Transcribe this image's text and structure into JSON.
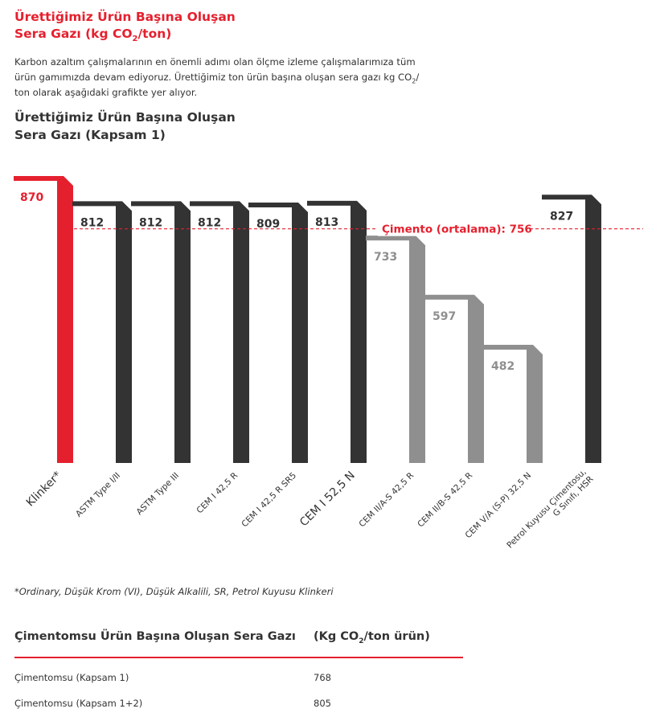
{
  "header": {
    "title_line1": "Ürettiğimiz Ürün Başına Oluşan",
    "title_line2_pre": "Sera Gazı (kg CO",
    "title_line2_sub": "2",
    "title_line2_post": "/ton)",
    "intro_part1": "Karbon azaltım çalışmalarının en önemli adımı olan ölçme izleme çalışmalarımıza tüm ürün gamımızda devam ediyoruz. Ürettiğimiz ton ürün başına oluşan sera gazı kg CO",
    "intro_sub": "2",
    "intro_part2": "/ ton olarak aşağıdaki grafikte yer alıyor."
  },
  "chart_title": {
    "line1": "Ürettiğimiz Ürün Başına Oluşan",
    "line2": "Sera Gazı (Kapsam 1)"
  },
  "colors": {
    "red": "#e5202e",
    "dark": "#333333",
    "grey": "#8f8f8f"
  },
  "chart_data": {
    "type": "bar",
    "title": "Ürettiğimiz Ürün Başına Oluşan Sera Gazı (Kapsam 1)",
    "categories": [
      "Klinker*",
      "ASTM Type I/II",
      "ASTM Type III",
      "CEM I 42,5 R",
      "CEM I 42,5 R SR5",
      "CEM I 52,5 N",
      "CEM II/A-S 42,5 R",
      "CEM II/B-S 42,5 R",
      "CEM V/A (S-P) 32,5 N",
      "Petrol Kuyusu Çimentosu, G Sınıfı, HSR"
    ],
    "values": [
      870,
      812,
      812,
      812,
      809,
      813,
      733,
      597,
      482,
      827
    ],
    "bar_colors": [
      "red",
      "dark",
      "dark",
      "dark",
      "dark",
      "dark",
      "grey",
      "grey",
      "grey",
      "dark"
    ],
    "reference_line": {
      "value": 756,
      "label": "Çimento (ortalama): 756"
    },
    "grid": false
  },
  "footnote": "*Ordinary, Düşük Krom (VI), Düşük Alkalili, SR, Petrol Kuyusu Klinkeri",
  "table": {
    "header_label": "Çimentomsu Ürün Başına Oluşan Sera Gazı",
    "unit_pre": "(Kg CO",
    "unit_sub": "2",
    "unit_post": "/ton ürün)",
    "rows": [
      {
        "label": "Çimentomsu (Kapsam 1)",
        "value": "768"
      },
      {
        "label": "Çimentomsu (Kapsam 1+2)",
        "value": "805"
      }
    ]
  }
}
